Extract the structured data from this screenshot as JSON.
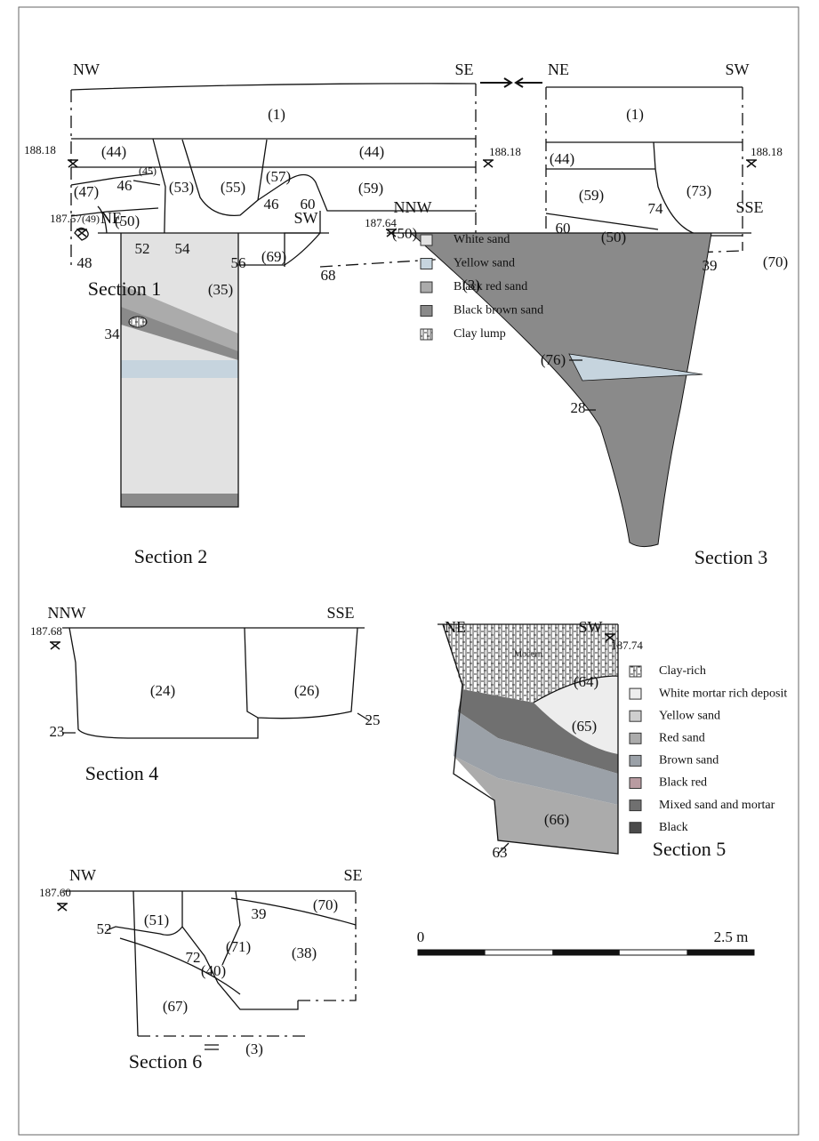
{
  "sections": [
    {
      "title": "Section 1",
      "directions": [
        "NW",
        "SE",
        "NE",
        "SW"
      ],
      "elevations": [
        "188.18",
        "188.18",
        "188.18"
      ],
      "labels": [
        "(1)",
        "(44)",
        "(44)",
        "(45)",
        "46",
        "(47)",
        "(49)",
        "(50)",
        "48",
        "52",
        "(53)",
        "54",
        "(55)",
        "56",
        "(57)",
        "46",
        "60",
        "(59)",
        "(50)",
        "(3)",
        "(1)",
        "(44)",
        "(59)",
        "74",
        "(73)",
        "60",
        "(50)",
        "39",
        "(70)"
      ]
    },
    {
      "title": "Section 2",
      "directions": [
        "NE",
        "SW"
      ],
      "elevations": [
        "187.57"
      ],
      "labels": [
        "(35)",
        "(69)",
        "68",
        "34"
      ]
    },
    {
      "title": "Section 3",
      "directions": [
        "NNW",
        "SSE"
      ],
      "elevations": [
        "187.64"
      ],
      "labels": [
        "(76)",
        "28"
      ]
    },
    {
      "title": "Section 4",
      "directions": [
        "NNW",
        "SSE"
      ],
      "elevations": [
        "187.68"
      ],
      "labels": [
        "(24)",
        "(26)",
        "23",
        "25"
      ]
    },
    {
      "title": "Section 5",
      "directions": [
        "NE",
        "SW"
      ],
      "elevations": [
        "187.74"
      ],
      "labels": [
        "Modern",
        "(64)",
        "(65)",
        "(66)",
        "63"
      ]
    },
    {
      "title": "Section 6",
      "directions": [
        "NW",
        "SE"
      ],
      "elevations": [
        "187.60"
      ],
      "labels": [
        "(51)",
        "39",
        "(70)",
        "(71)",
        "(38)",
        "52",
        "72",
        "(40)",
        "(67)",
        "(3)"
      ]
    }
  ],
  "legends": [
    {
      "items": [
        {
          "label": "White sand",
          "color": "#e2e2e2"
        },
        {
          "label": "Yellow sand",
          "color": "#c6d4de"
        },
        {
          "label": "Black red sand",
          "color": "#ababab"
        },
        {
          "label": "Black brown sand",
          "color": "#8a8a8a"
        },
        {
          "label": "Clay lump"
        }
      ]
    },
    {
      "items": [
        {
          "label": "Clay-rich"
        },
        {
          "label": "White mortar rich deposit",
          "color": "#ededed"
        },
        {
          "label": "Yellow sand",
          "color": "#cfcfcf"
        },
        {
          "label": "Red sand",
          "color": "#ababab"
        },
        {
          "label": "Brown sand",
          "color": "#9ba1a8"
        },
        {
          "label": "Black red",
          "color": "#b99ba1"
        },
        {
          "label": "Mixed sand and mortar",
          "color": "#707070"
        },
        {
          "label": "Black",
          "color": "#4a4a4a"
        }
      ]
    }
  ],
  "scale": {
    "start": "0",
    "end": "2.5 m"
  }
}
